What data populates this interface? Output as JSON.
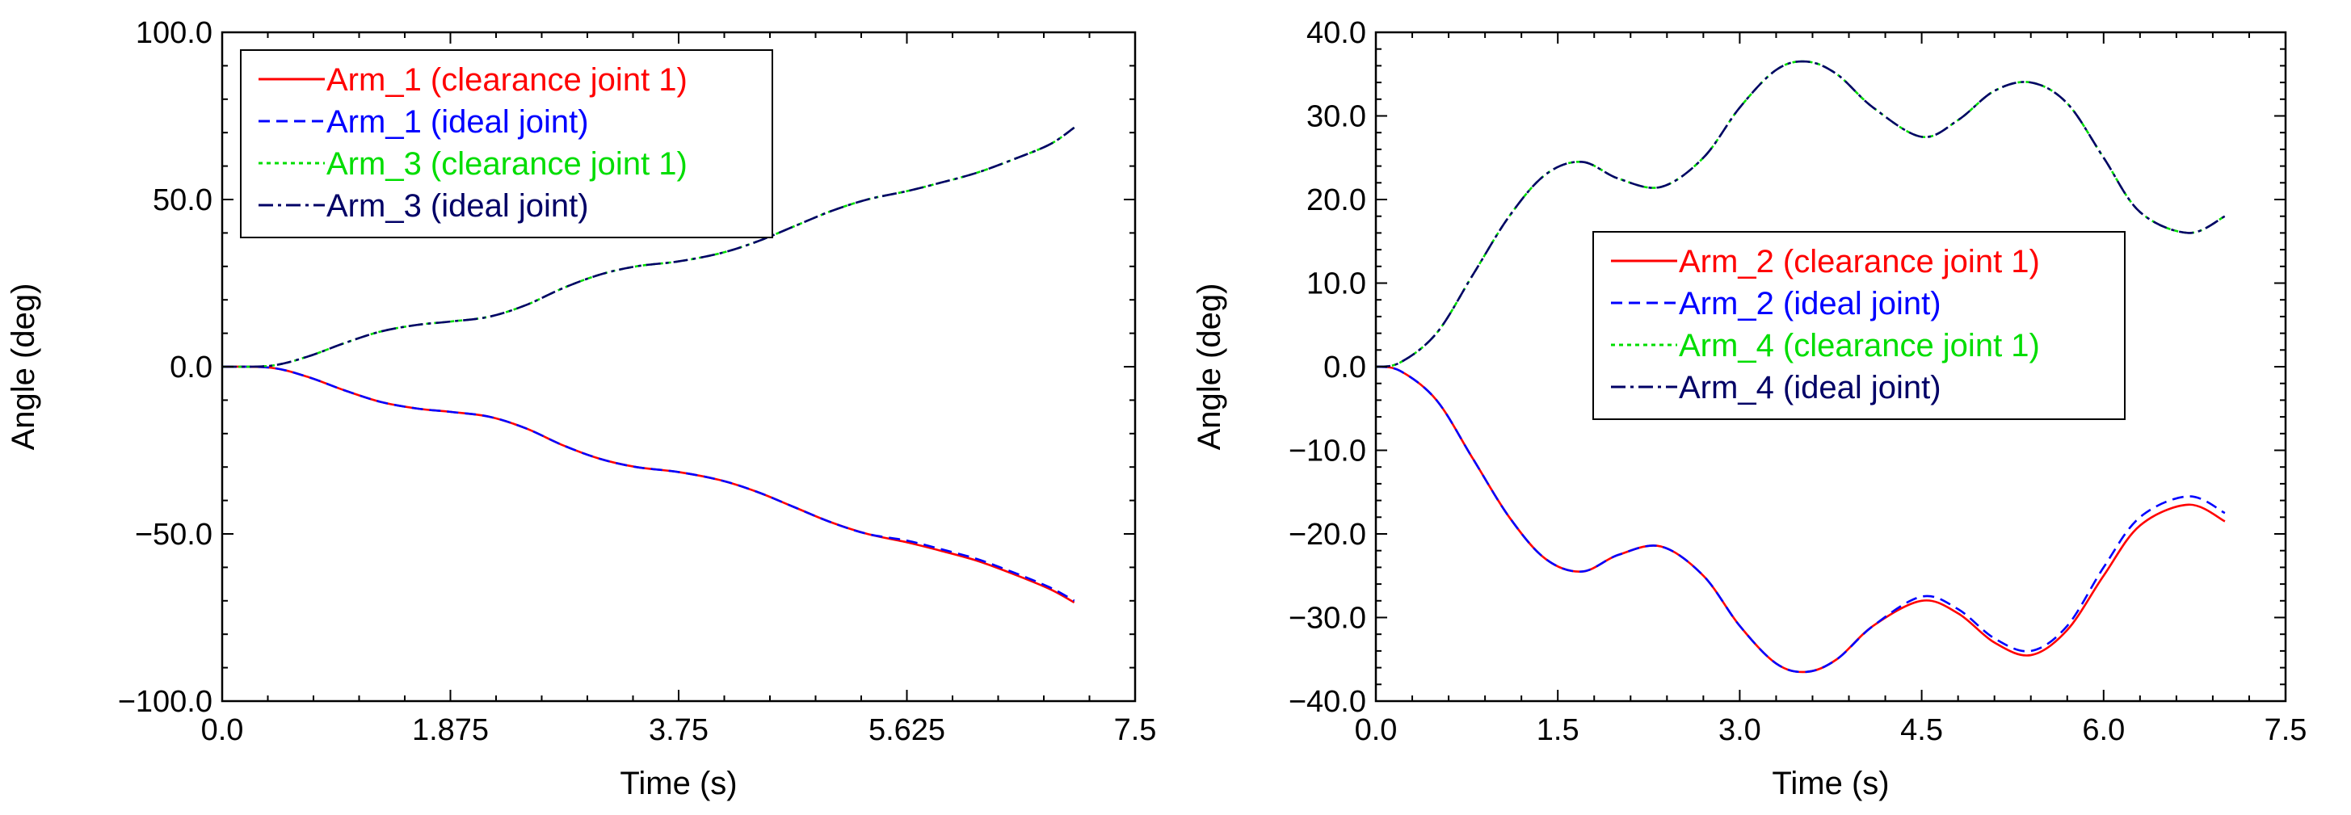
{
  "chart_data": [
    {
      "type": "line",
      "title": "",
      "xlabel": "Time (s)",
      "ylabel": "Angle (deg)",
      "xlim": [
        0,
        7.5
      ],
      "ylim": [
        -100,
        100
      ],
      "xticks": [
        0,
        1.875,
        3.75,
        5.625,
        7.5
      ],
      "xtick_labels": [
        "0.0",
        "1.875",
        "3.75",
        "5.625",
        "7.5"
      ],
      "yticks": [
        -100,
        -50,
        0,
        50,
        100
      ],
      "ytick_labels": [
        "−100.0",
        "−50.0",
        "0.0",
        "50.0",
        "100.0"
      ],
      "grid": false,
      "legend_position": "top-left",
      "series": [
        {
          "name": "Arm_1 (clearance joint 1)",
          "color": "#ff0000",
          "dash": "solid",
          "x": [
            0,
            0.4,
            0.7,
            1,
            1.3,
            1.6,
            1.875,
            2.2,
            2.5,
            2.8,
            3.1,
            3.4,
            3.75,
            4.1,
            4.4,
            4.7,
            5.0,
            5.3,
            5.625,
            5.9,
            6.2,
            6.5,
            6.8,
            7.0
          ],
          "y": [
            0,
            -0.3,
            -3,
            -7,
            -10.5,
            -12.5,
            -13.5,
            -15,
            -18.5,
            -23.5,
            -27.5,
            -30,
            -31.5,
            -34,
            -37.5,
            -42,
            -46.5,
            -50,
            -52.5,
            -55,
            -58,
            -62,
            -66.5,
            -70.5
          ]
        },
        {
          "name": "Arm_1 (ideal joint)",
          "color": "#0000ff",
          "dash": "14,8",
          "x": [
            0,
            0.4,
            0.7,
            1,
            1.3,
            1.6,
            1.875,
            2.2,
            2.5,
            2.8,
            3.1,
            3.4,
            3.75,
            4.1,
            4.4,
            4.7,
            5.0,
            5.3,
            5.625,
            5.9,
            6.2,
            6.5,
            6.8,
            7.0
          ],
          "y": [
            0,
            -0.3,
            -3,
            -7,
            -10.5,
            -12.5,
            -13.5,
            -15,
            -18.5,
            -23.5,
            -27.5,
            -30,
            -31.5,
            -34,
            -37.5,
            -42,
            -46.5,
            -50,
            -52,
            -54.5,
            -57.5,
            -61.5,
            -66,
            -70
          ]
        },
        {
          "name": "Arm_3 (clearance joint 1)",
          "color": "#00dd00",
          "dash": "5,5",
          "x": [
            0,
            0.4,
            0.7,
            1,
            1.3,
            1.6,
            1.875,
            2.2,
            2.5,
            2.8,
            3.1,
            3.4,
            3.75,
            4.1,
            4.4,
            4.7,
            5.0,
            5.3,
            5.625,
            5.9,
            6.2,
            6.5,
            6.8,
            7.0
          ],
          "y": [
            0,
            0.3,
            3,
            7,
            10.5,
            12.5,
            13.5,
            15,
            18.5,
            23.5,
            27.5,
            30,
            31.5,
            34,
            37.5,
            42,
            46.5,
            50,
            52.5,
            55,
            58,
            62,
            66.5,
            71.5
          ]
        },
        {
          "name": "Arm_3 (ideal joint)",
          "color": "#000066",
          "dash": "18,6,4,6",
          "x": [
            0,
            0.4,
            0.7,
            1,
            1.3,
            1.6,
            1.875,
            2.2,
            2.5,
            2.8,
            3.1,
            3.4,
            3.75,
            4.1,
            4.4,
            4.7,
            5.0,
            5.3,
            5.625,
            5.9,
            6.2,
            6.5,
            6.8,
            7.0
          ],
          "y": [
            0,
            0.3,
            3,
            7,
            10.5,
            12.5,
            13.5,
            15,
            18.5,
            23.5,
            27.5,
            30,
            31.5,
            34,
            37.5,
            42,
            46.5,
            50,
            52.5,
            55,
            58,
            62,
            66.5,
            71.5
          ]
        }
      ]
    },
    {
      "type": "line",
      "title": "",
      "xlabel": "Time (s)",
      "ylabel": "Angle (deg)",
      "xlim": [
        0,
        7.5
      ],
      "ylim": [
        -40,
        40
      ],
      "xticks": [
        0,
        1.5,
        3,
        4.5,
        6,
        7.5
      ],
      "xtick_labels": [
        "0.0",
        "1.5",
        "3.0",
        "4.5",
        "6.0",
        "7.5"
      ],
      "yticks": [
        -40,
        -30,
        -20,
        -10,
        0,
        10,
        20,
        30,
        40
      ],
      "ytick_labels": [
        "−40.0",
        "−30.0",
        "−20.0",
        "−10.0",
        "0.0",
        "10.0",
        "20.0",
        "30.0",
        "40.0"
      ],
      "grid": false,
      "legend_position": "center-right",
      "series": [
        {
          "name": "Arm_2 (clearance joint 1)",
          "color": "#ff0000",
          "dash": "solid",
          "x": [
            0,
            0.2,
            0.5,
            0.8,
            1.1,
            1.4,
            1.7,
            2.0,
            2.35,
            2.7,
            3.0,
            3.3,
            3.55,
            3.8,
            4.1,
            4.5,
            4.8,
            5.1,
            5.4,
            5.7,
            6.0,
            6.3,
            6.7,
            7.0
          ],
          "y": [
            0,
            -0.5,
            -4,
            -11,
            -18,
            -23,
            -24.5,
            -22.5,
            -21.5,
            -25,
            -31,
            -35.5,
            -36.5,
            -35,
            -31,
            -28,
            -29.5,
            -33,
            -34.5,
            -31.5,
            -25,
            -19,
            -16.5,
            -18.5
          ]
        },
        {
          "name": "Arm_2 (ideal joint)",
          "color": "#0000ff",
          "dash": "14,8",
          "x": [
            0,
            0.2,
            0.5,
            0.8,
            1.1,
            1.4,
            1.7,
            2.0,
            2.35,
            2.7,
            3.0,
            3.3,
            3.55,
            3.8,
            4.1,
            4.5,
            4.8,
            5.1,
            5.4,
            5.7,
            6.0,
            6.3,
            6.7,
            7.0
          ],
          "y": [
            0,
            -0.5,
            -4,
            -11,
            -18,
            -23,
            -24.5,
            -22.5,
            -21.5,
            -25,
            -31,
            -35.5,
            -36.5,
            -35,
            -31,
            -27.5,
            -29,
            -32.5,
            -34,
            -31,
            -24,
            -18,
            -15.5,
            -17.5
          ]
        },
        {
          "name": "Arm_4 (clearance joint 1)",
          "color": "#00dd00",
          "dash": "5,5",
          "x": [
            0,
            0.2,
            0.5,
            0.8,
            1.1,
            1.4,
            1.7,
            2.0,
            2.35,
            2.7,
            3.0,
            3.3,
            3.55,
            3.8,
            4.1,
            4.5,
            4.8,
            5.1,
            5.4,
            5.7,
            6.0,
            6.3,
            6.7,
            7.0
          ],
          "y": [
            0,
            0.5,
            4,
            11,
            18,
            23,
            24.5,
            22.5,
            21.5,
            25,
            31,
            35.5,
            36.5,
            35,
            31,
            27.5,
            29.5,
            33,
            34,
            31.5,
            25,
            18.5,
            16,
            18
          ]
        },
        {
          "name": "Arm_4 (ideal joint)",
          "color": "#000066",
          "dash": "18,6,4,6",
          "x": [
            0,
            0.2,
            0.5,
            0.8,
            1.1,
            1.4,
            1.7,
            2.0,
            2.35,
            2.7,
            3.0,
            3.3,
            3.55,
            3.8,
            4.1,
            4.5,
            4.8,
            5.1,
            5.4,
            5.7,
            6.0,
            6.3,
            6.7,
            7.0
          ],
          "y": [
            0,
            0.5,
            4,
            11,
            18,
            23,
            24.5,
            22.5,
            21.5,
            25,
            31,
            35.5,
            36.5,
            35,
            31,
            27.5,
            29.5,
            33,
            34,
            31.5,
            25,
            18.5,
            16,
            18
          ]
        }
      ]
    }
  ]
}
